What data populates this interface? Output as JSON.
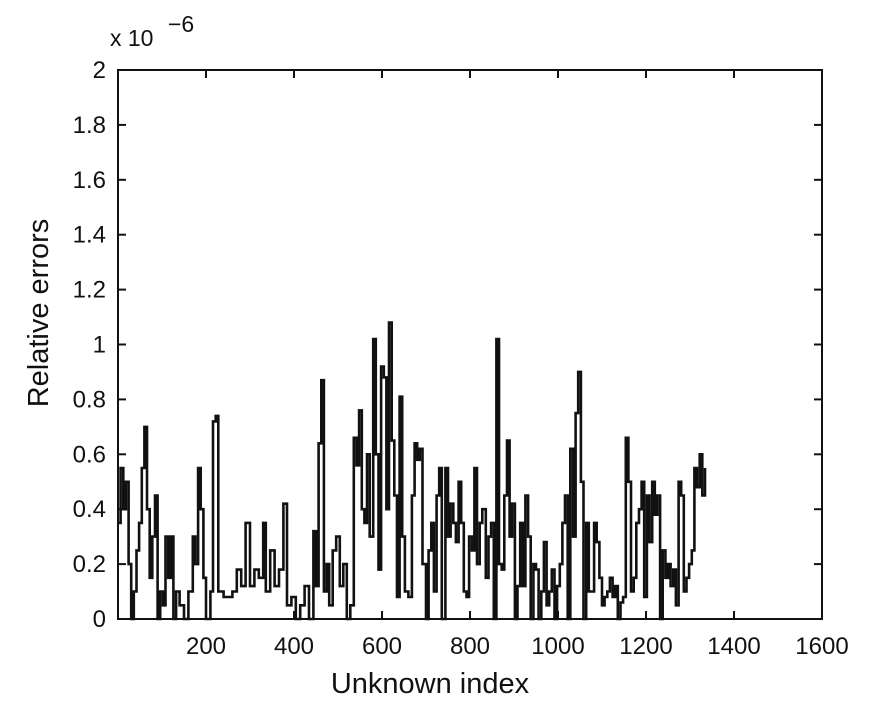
{
  "chart_data": {
    "type": "line",
    "title": "",
    "xlabel": "Unknown index",
    "ylabel": "Relative errors",
    "y_multiplier_label": "x 10",
    "y_multiplier_exponent": "−6",
    "xlim": [
      0,
      1600
    ],
    "ylim": [
      0,
      2
    ],
    "grid": false,
    "legend": "none",
    "line_color": "#111111",
    "x_ticks": [
      {
        "value": 200,
        "label": "200"
      },
      {
        "value": 400,
        "label": "400"
      },
      {
        "value": 600,
        "label": "600"
      },
      {
        "value": 800,
        "label": "800"
      },
      {
        "value": 1000,
        "label": "1000"
      },
      {
        "value": 1200,
        "label": "1200"
      },
      {
        "value": 1400,
        "label": "1400"
      },
      {
        "value": 1600,
        "label": "1600"
      }
    ],
    "y_ticks": [
      {
        "value": 0,
        "label": "0"
      },
      {
        "value": 0.2,
        "label": "0.2"
      },
      {
        "value": 0.4,
        "label": "0.4"
      },
      {
        "value": 0.6,
        "label": "0.6"
      },
      {
        "value": 0.8,
        "label": "0.8"
      },
      {
        "value": 1,
        "label": "1"
      },
      {
        "value": 1.2,
        "label": "1.2"
      },
      {
        "value": 1.4,
        "label": "1.4"
      },
      {
        "value": 1.6,
        "label": "1.6"
      },
      {
        "value": 1.8,
        "label": "1.8"
      },
      {
        "value": 2,
        "label": "2"
      }
    ],
    "series": [
      {
        "values": [
          [
            0,
            0.35
          ],
          [
            6,
            0.55
          ],
          [
            12,
            0.4
          ],
          [
            18,
            0.5
          ],
          [
            24,
            0.2
          ],
          [
            30,
            0.0
          ],
          [
            36,
            0.1
          ],
          [
            42,
            0.25
          ],
          [
            48,
            0.35
          ],
          [
            54,
            0.55
          ],
          [
            60,
            0.7
          ],
          [
            66,
            0.4
          ],
          [
            72,
            0.15
          ],
          [
            78,
            0.3
          ],
          [
            84,
            0.45
          ],
          [
            90,
            0.0
          ],
          [
            96,
            0.1
          ],
          [
            102,
            0.05
          ],
          [
            108,
            0.3
          ],
          [
            114,
            0.15
          ],
          [
            120,
            0.3
          ],
          [
            126,
            0.0
          ],
          [
            132,
            0.1
          ],
          [
            140,
            0.05
          ],
          [
            150,
            0.0
          ],
          [
            160,
            0.1
          ],
          [
            170,
            0.3
          ],
          [
            176,
            0.2
          ],
          [
            182,
            0.55
          ],
          [
            188,
            0.4
          ],
          [
            194,
            0.15
          ],
          [
            200,
            0.0
          ],
          [
            210,
            0.1
          ],
          [
            216,
            0.72
          ],
          [
            222,
            0.74
          ],
          [
            228,
            0.1
          ],
          [
            240,
            0.08
          ],
          [
            260,
            0.1
          ],
          [
            270,
            0.18
          ],
          [
            280,
            0.12
          ],
          [
            290,
            0.35
          ],
          [
            300,
            0.12
          ],
          [
            310,
            0.18
          ],
          [
            320,
            0.15
          ],
          [
            330,
            0.35
          ],
          [
            336,
            0.1
          ],
          [
            346,
            0.25
          ],
          [
            356,
            0.12
          ],
          [
            366,
            0.18
          ],
          [
            376,
            0.42
          ],
          [
            384,
            0.05
          ],
          [
            394,
            0.08
          ],
          [
            404,
            0.0
          ],
          [
            414,
            0.05
          ],
          [
            424,
            0.12
          ],
          [
            434,
            0.0
          ],
          [
            444,
            0.32
          ],
          [
            450,
            0.12
          ],
          [
            456,
            0.64
          ],
          [
            462,
            0.87
          ],
          [
            468,
            0.1
          ],
          [
            474,
            0.2
          ],
          [
            480,
            0.05
          ],
          [
            488,
            0.25
          ],
          [
            496,
            0.3
          ],
          [
            504,
            0.12
          ],
          [
            512,
            0.2
          ],
          [
            520,
            0.0
          ],
          [
            528,
            0.05
          ],
          [
            536,
            0.66
          ],
          [
            542,
            0.56
          ],
          [
            548,
            0.76
          ],
          [
            554,
            0.4
          ],
          [
            560,
            0.35
          ],
          [
            566,
            0.6
          ],
          [
            572,
            0.3
          ],
          [
            580,
            1.02
          ],
          [
            586,
            0.6
          ],
          [
            592,
            0.18
          ],
          [
            598,
            0.92
          ],
          [
            604,
            0.88
          ],
          [
            610,
            0.4
          ],
          [
            616,
            1.08
          ],
          [
            622,
            0.65
          ],
          [
            628,
            0.45
          ],
          [
            634,
            0.08
          ],
          [
            640,
            0.81
          ],
          [
            646,
            0.3
          ],
          [
            652,
            0.1
          ],
          [
            660,
            0.08
          ],
          [
            668,
            0.45
          ],
          [
            674,
            0.64
          ],
          [
            680,
            0.58
          ],
          [
            686,
            0.62
          ],
          [
            692,
            0.2
          ],
          [
            700,
            0.0
          ],
          [
            706,
            0.25
          ],
          [
            712,
            0.35
          ],
          [
            718,
            0.1
          ],
          [
            724,
            0.45
          ],
          [
            730,
            0.55
          ],
          [
            736,
            0.0
          ],
          [
            744,
            0.55
          ],
          [
            750,
            0.3
          ],
          [
            756,
            0.42
          ],
          [
            762,
            0.35
          ],
          [
            768,
            0.28
          ],
          [
            774,
            0.5
          ],
          [
            780,
            0.35
          ],
          [
            786,
            0.1
          ],
          [
            792,
            0.08
          ],
          [
            798,
            0.3
          ],
          [
            804,
            0.25
          ],
          [
            810,
            0.55
          ],
          [
            816,
            0.2
          ],
          [
            822,
            0.35
          ],
          [
            828,
            0.4
          ],
          [
            836,
            0.15
          ],
          [
            842,
            0.3
          ],
          [
            848,
            0.35
          ],
          [
            854,
            0.0
          ],
          [
            860,
            1.02
          ],
          [
            866,
            0.2
          ],
          [
            872,
            0.18
          ],
          [
            878,
            0.45
          ],
          [
            884,
            0.65
          ],
          [
            890,
            0.3
          ],
          [
            896,
            0.42
          ],
          [
            902,
            0.0
          ],
          [
            908,
            0.12
          ],
          [
            914,
            0.35
          ],
          [
            920,
            0.12
          ],
          [
            926,
            0.45
          ],
          [
            932,
            0.3
          ],
          [
            938,
            0.0
          ],
          [
            944,
            0.2
          ],
          [
            950,
            0.18
          ],
          [
            956,
            0.0
          ],
          [
            962,
            0.1
          ],
          [
            968,
            0.28
          ],
          [
            974,
            0.05
          ],
          [
            980,
            0.1
          ],
          [
            986,
            0.18
          ],
          [
            992,
            0.0
          ],
          [
            998,
            0.12
          ],
          [
            1004,
            0.2
          ],
          [
            1010,
            0.35
          ],
          [
            1016,
            0.45
          ],
          [
            1022,
            0.0
          ],
          [
            1028,
            0.62
          ],
          [
            1034,
            0.3
          ],
          [
            1040,
            0.75
          ],
          [
            1046,
            0.9
          ],
          [
            1052,
            0.5
          ],
          [
            1058,
            0.0
          ],
          [
            1064,
            0.35
          ],
          [
            1070,
            0.1
          ],
          [
            1076,
            0.1
          ],
          [
            1082,
            0.35
          ],
          [
            1088,
            0.28
          ],
          [
            1094,
            0.15
          ],
          [
            1100,
            0.05
          ],
          [
            1106,
            0.08
          ],
          [
            1112,
            0.1
          ],
          [
            1118,
            0.15
          ],
          [
            1124,
            0.08
          ],
          [
            1130,
            0.12
          ],
          [
            1136,
            0.0
          ],
          [
            1142,
            0.06
          ],
          [
            1148,
            0.08
          ],
          [
            1154,
            0.66
          ],
          [
            1160,
            0.5
          ],
          [
            1166,
            0.1
          ],
          [
            1172,
            0.15
          ],
          [
            1178,
            0.35
          ],
          [
            1184,
            0.4
          ],
          [
            1190,
            0.5
          ],
          [
            1196,
            0.08
          ],
          [
            1202,
            0.45
          ],
          [
            1208,
            0.28
          ],
          [
            1214,
            0.5
          ],
          [
            1220,
            0.38
          ],
          [
            1226,
            0.45
          ],
          [
            1232,
            0.0
          ],
          [
            1238,
            0.25
          ],
          [
            1244,
            0.15
          ],
          [
            1250,
            0.2
          ],
          [
            1256,
            0.12
          ],
          [
            1262,
            0.18
          ],
          [
            1268,
            0.05
          ],
          [
            1274,
            0.5
          ],
          [
            1280,
            0.45
          ],
          [
            1286,
            0.1
          ],
          [
            1292,
            0.15
          ],
          [
            1298,
            0.2
          ],
          [
            1304,
            0.25
          ],
          [
            1310,
            0.55
          ],
          [
            1316,
            0.48
          ],
          [
            1322,
            0.6
          ],
          [
            1328,
            0.45
          ],
          [
            1334,
            0.55
          ]
        ]
      }
    ]
  }
}
